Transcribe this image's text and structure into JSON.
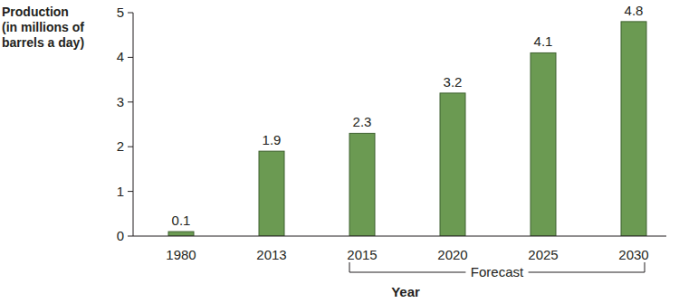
{
  "chart_data": {
    "type": "bar",
    "y_label": [
      "Production",
      "(in millions of",
      "barrels a day)"
    ],
    "x_label": "Year",
    "categories": [
      "1980",
      "2013",
      "2015",
      "2020",
      "2025",
      "2030"
    ],
    "values": [
      0.1,
      1.9,
      2.3,
      3.2,
      4.1,
      4.8
    ],
    "color": "#6b9a52",
    "ylim": [
      0,
      5
    ],
    "yticks": [
      0,
      1,
      2,
      3,
      4,
      5
    ],
    "grid": false,
    "data_labels": true,
    "annotations": [
      {
        "text": "Forecast",
        "from": "2015",
        "to": "2030"
      }
    ]
  }
}
